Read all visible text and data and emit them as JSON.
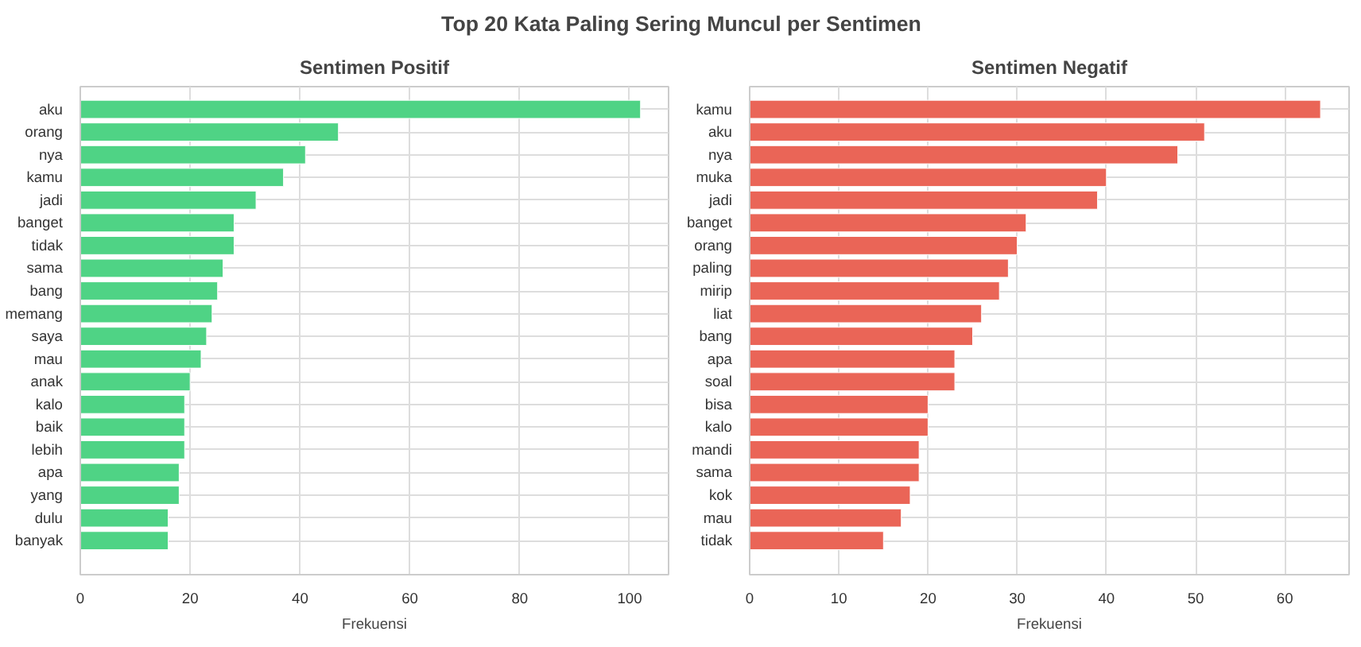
{
  "chart_data": [
    {
      "type": "bar",
      "orientation": "horizontal",
      "title": "Sentimen Positif",
      "xlabel": "Frekuensi",
      "annotations": [
        "Top 20 Kata Paling Sering Muncul per Sentimen"
      ],
      "categories": [
        "aku",
        "orang",
        "nya",
        "kamu",
        "jadi",
        "banget",
        "tidak",
        "sama",
        "bang",
        "memang",
        "saya",
        "mau",
        "anak",
        "kalo",
        "baik",
        "lebih",
        "apa",
        "yang",
        "dulu",
        "banyak"
      ],
      "series": [
        {
          "color": "#4fd385",
          "values": [
            102,
            47,
            41,
            37,
            32,
            28,
            28,
            26,
            25,
            24,
            23,
            22,
            20,
            19,
            19,
            19,
            18,
            18,
            16,
            16
          ]
        }
      ],
      "xlim": [
        0,
        107.1
      ],
      "xticks": [
        0,
        20,
        40,
        60,
        80,
        100
      ],
      "grid": true
    },
    {
      "type": "bar",
      "orientation": "horizontal",
      "title": "Sentimen Negatif",
      "xlabel": "Frekuensi",
      "categories": [
        "kamu",
        "aku",
        "nya",
        "muka",
        "jadi",
        "banget",
        "orang",
        "paling",
        "mirip",
        "liat",
        "bang",
        "apa",
        "soal",
        "bisa",
        "kalo",
        "mandi",
        "sama",
        "kok",
        "mau",
        "tidak"
      ],
      "series": [
        {
          "color": "#ea6557",
          "values": [
            64,
            51,
            48,
            40,
            39,
            31,
            30,
            29,
            28,
            26,
            25,
            23,
            23,
            20,
            20,
            19,
            19,
            18,
            17,
            15
          ]
        }
      ],
      "xlim": [
        0,
        67.2
      ],
      "xticks": [
        0,
        10,
        20,
        30,
        40,
        50,
        60
      ],
      "grid": true
    }
  ]
}
